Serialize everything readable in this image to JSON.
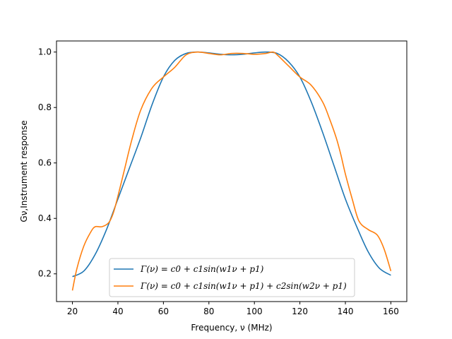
{
  "chart_data": {
    "type": "line",
    "title": "",
    "xlabel": "Frequency, ν (MHz)",
    "ylabel": "Gν,Instrument response",
    "xlim": [
      13,
      167
    ],
    "ylim": [
      0.1,
      1.04
    ],
    "xticks": [
      20,
      40,
      60,
      80,
      100,
      120,
      140,
      160
    ],
    "yticks": [
      0.2,
      0.4,
      0.6,
      0.8,
      1.0
    ],
    "xtick_labels": [
      "20",
      "40",
      "60",
      "80",
      "100",
      "120",
      "140",
      "160"
    ],
    "ytick_labels": [
      "0.2",
      "0.4",
      "0.6",
      "0.8",
      "1.0"
    ],
    "grid": false,
    "legend_position": "lower-center",
    "series": [
      {
        "name": "Γ(ν) = c0 + c1sin(w1ν + p1)",
        "color": "#1f77b4",
        "x": [
          20,
          25,
          30,
          35,
          40,
          45,
          50,
          55,
          60,
          65,
          70,
          75,
          80,
          85,
          90,
          95,
          100,
          105,
          110,
          115,
          120,
          125,
          130,
          135,
          140,
          145,
          150,
          155,
          160
        ],
        "y": [
          0.19,
          0.21,
          0.27,
          0.36,
          0.47,
          0.58,
          0.69,
          0.81,
          0.91,
          0.97,
          0.995,
          1.0,
          0.997,
          0.992,
          0.99,
          0.992,
          0.997,
          1.0,
          0.995,
          0.965,
          0.91,
          0.82,
          0.71,
          0.59,
          0.47,
          0.37,
          0.28,
          0.22,
          0.195
        ]
      },
      {
        "name": "Γ(ν) = c0 + c1sin(w1ν + p1) + c2sin(w2ν + p1)",
        "color": "#ff7f0e",
        "x": [
          20,
          22,
          25,
          28,
          30,
          33,
          36,
          38,
          40,
          43,
          46,
          50,
          55,
          60,
          65,
          70,
          75,
          80,
          85,
          90,
          95,
          100,
          105,
          108,
          110,
          115,
          120,
          125,
          130,
          133,
          136,
          138,
          140,
          143,
          146,
          150,
          154,
          157,
          160
        ],
        "y": [
          0.14,
          0.22,
          0.3,
          0.35,
          0.37,
          0.37,
          0.385,
          0.42,
          0.48,
          0.58,
          0.68,
          0.79,
          0.87,
          0.91,
          0.945,
          0.99,
          1.0,
          0.995,
          0.99,
          0.995,
          0.995,
          0.992,
          0.995,
          1.0,
          0.99,
          0.95,
          0.91,
          0.88,
          0.82,
          0.76,
          0.69,
          0.63,
          0.56,
          0.47,
          0.39,
          0.36,
          0.34,
          0.29,
          0.21
        ]
      }
    ]
  }
}
